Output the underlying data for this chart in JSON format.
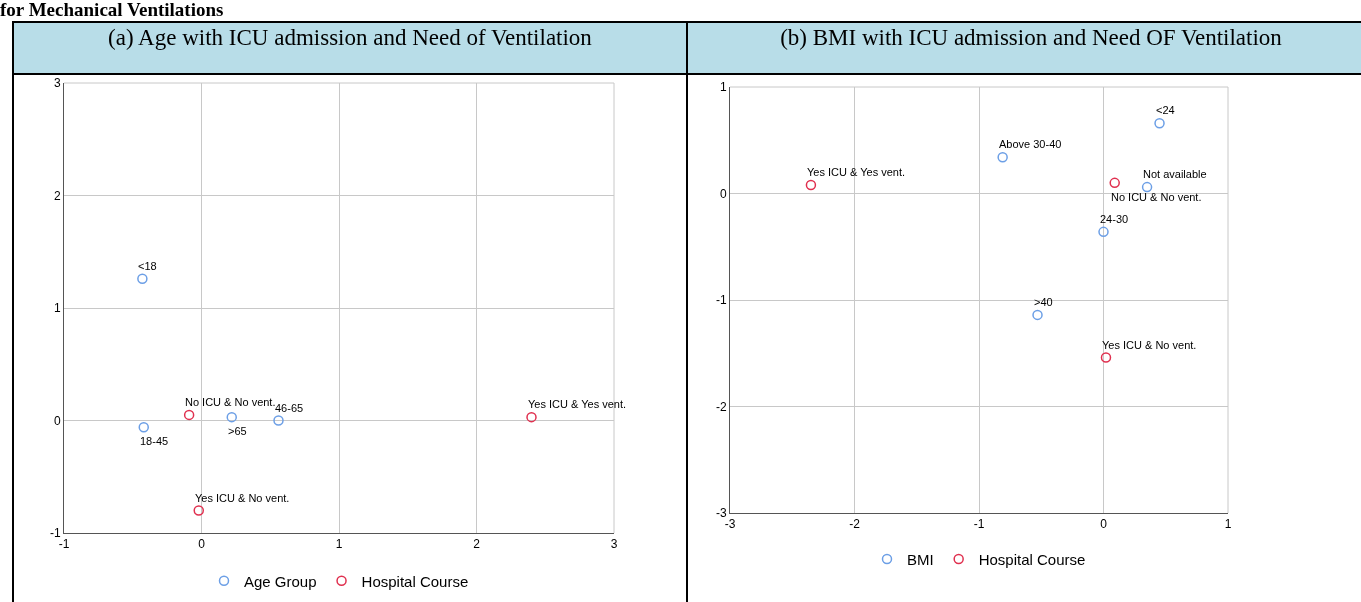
{
  "chart_data": [
    {
      "type": "scatter",
      "title": "(a)   Age with ICU admission and Need of  Ventilation",
      "annotations": [
        "for Mechanical Ventilations",
        {
          "text": "<18",
          "x": -0.43,
          "y": 1.26
        },
        {
          "text": "18-45",
          "x": -0.42,
          "y": -0.06
        },
        {
          "text": ">65",
          "x": 0.22,
          "y": 0.03
        },
        {
          "text": "46-65",
          "x": 0.56,
          "y": 0.0
        },
        {
          "text": "No ICU & No vent.",
          "x": -0.09,
          "y": 0.05
        },
        {
          "text": "Yes ICU & No vent.",
          "x": -0.02,
          "y": -0.8
        },
        {
          "text": "Yes ICU & Yes vent.",
          "x": 2.4,
          "y": 0.03
        }
      ],
      "series": [
        {
          "name": "Age Group",
          "color": "#6c9fe6",
          "x": [
            -0.43,
            -0.42,
            0.22,
            0.56
          ],
          "values": [
            1.26,
            -0.06,
            0.03,
            0.0
          ]
        },
        {
          "name": "Hospital Course",
          "color": "#e0304f",
          "x": [
            -0.09,
            -0.02,
            2.4
          ],
          "values": [
            0.05,
            -0.8,
            0.03
          ]
        }
      ],
      "xlim": [
        -1,
        3
      ],
      "xticks": [
        -1,
        0,
        1,
        2,
        3
      ],
      "ylim": [
        -1,
        3
      ],
      "yticks": [
        -1,
        0,
        1,
        2,
        3
      ],
      "grid": true,
      "legend": "bottom",
      "marker": "circle"
    },
    {
      "type": "scatter",
      "title": "(b)  BMI with ICU admission and Need OF Ventilation",
      "annotations": [
        {
          "text": "<24",
          "x": 0.45,
          "y": 0.66
        },
        {
          "text": "Above 30-40",
          "x": -0.81,
          "y": 0.34
        },
        {
          "text": "Not available",
          "x": 0.35,
          "y": 0.06
        },
        {
          "text": "24-30",
          "x": 0.0,
          "y": -0.36
        },
        {
          "text": ">40",
          "x": -0.53,
          "y": -1.14
        },
        {
          "text": "Yes ICU & Yes vent.",
          "x": -2.35,
          "y": 0.08
        },
        {
          "text": "No ICU & No vent.",
          "x": 0.09,
          "y": 0.1
        },
        {
          "text": "Yes ICU & No vent.",
          "x": 0.02,
          "y": -1.54
        }
      ],
      "series": [
        {
          "name": "BMI",
          "color": "#6c9fe6",
          "x": [
            0.45,
            -0.81,
            0.35,
            0.0,
            -0.53
          ],
          "values": [
            0.66,
            0.34,
            0.06,
            -0.36,
            -1.14
          ]
        },
        {
          "name": "Hospital Course",
          "color": "#e0304f",
          "x": [
            -2.35,
            0.09,
            0.02
          ],
          "values": [
            0.08,
            0.1,
            -1.54
          ]
        }
      ],
      "xlim": [
        -3,
        1
      ],
      "xticks": [
        -3,
        -2,
        -1,
        0,
        1
      ],
      "ylim": [
        -3,
        1
      ],
      "yticks": [
        -3,
        -2,
        -1,
        0,
        1
      ],
      "grid": true,
      "legend": "bottom",
      "marker": "circle"
    }
  ]
}
